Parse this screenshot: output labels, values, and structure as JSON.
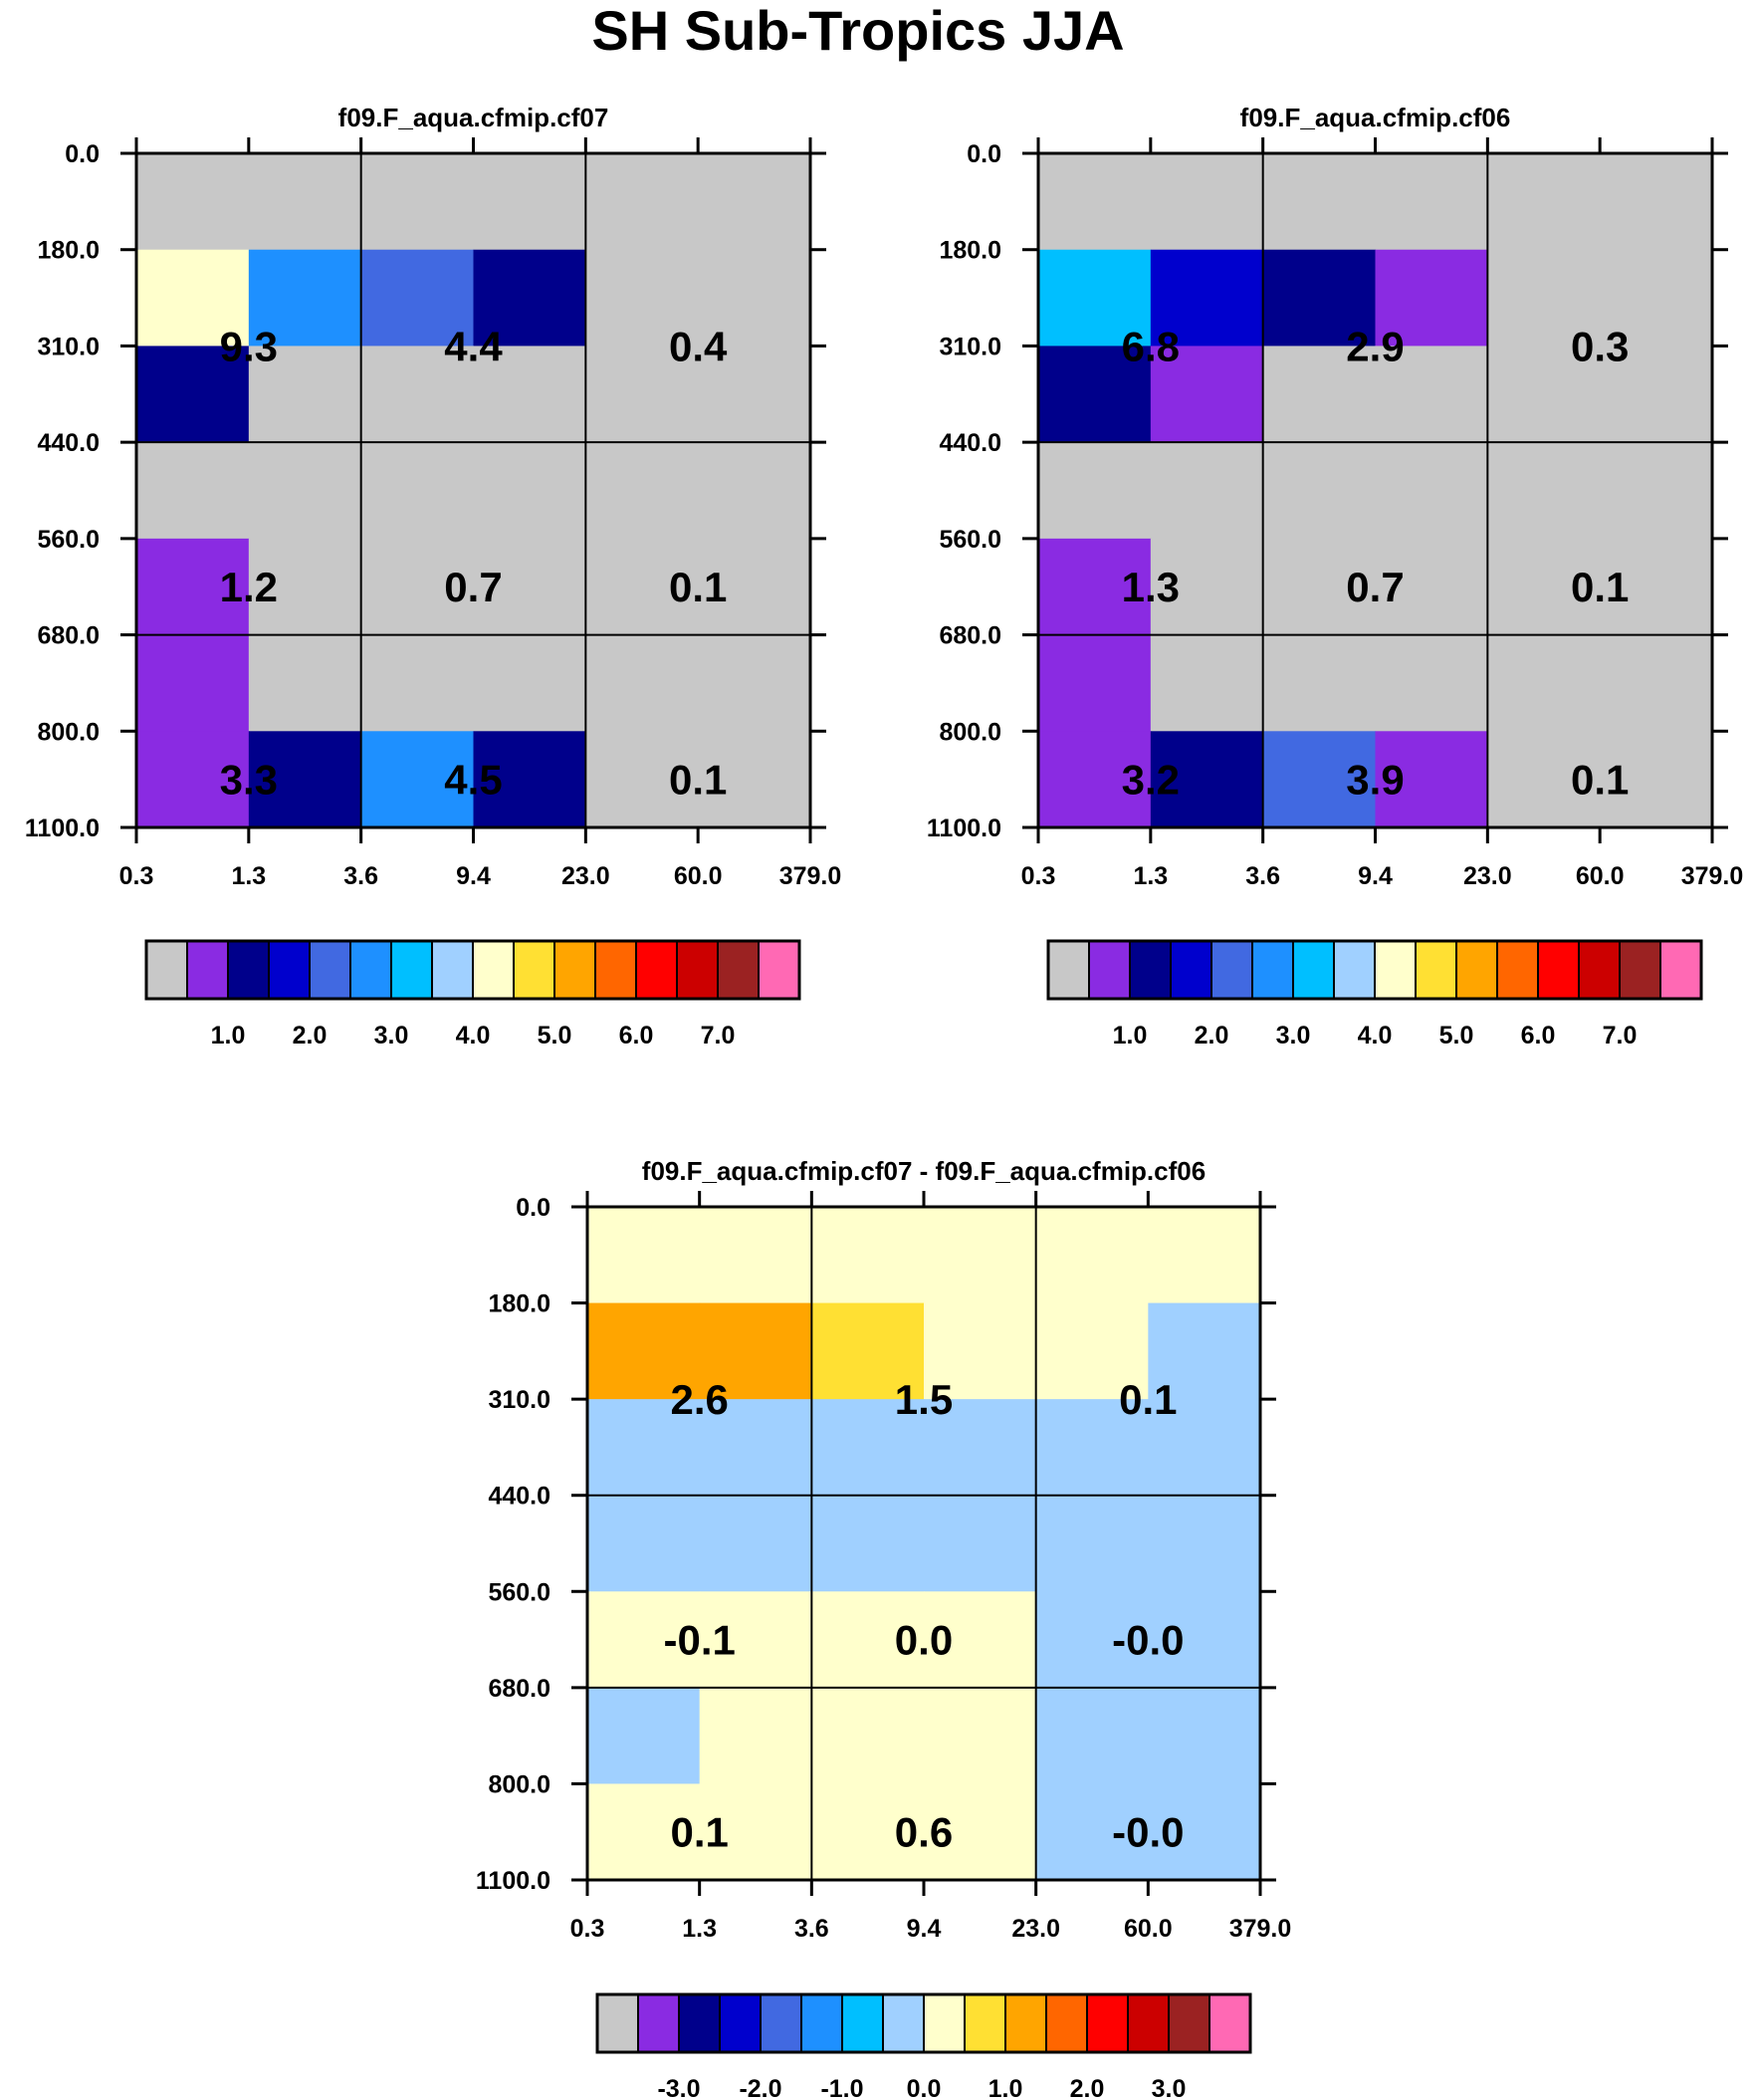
{
  "title": "SH Sub-Tropics JJA",
  "colors": {
    "palette": [
      "#c8c8c8",
      "#8a2be2",
      "#00008b",
      "#0000cd",
      "#4169e1",
      "#1e90ff",
      "#00bfff",
      "#a0d0ff",
      "#ffffcc",
      "#ffe033",
      "#ffa500",
      "#ff6600",
      "#ff0000",
      "#cc0000",
      "#9b2222",
      "#ff69b4"
    ],
    "missing": "#bebebe"
  },
  "chart_data": [
    {
      "type": "heatmap",
      "title": "f09.F_aqua.cfmip.cf07",
      "x_ticks": [
        "0.3",
        "1.3",
        "3.6",
        "9.4",
        "23.0",
        "60.0",
        "379.0"
      ],
      "y_ticks": [
        "0.0",
        "180.0",
        "310.0",
        "440.0",
        "560.0",
        "680.0",
        "800.0",
        "1100.0"
      ],
      "colorbar_labels": [
        "1.0",
        "2.0",
        "3.0",
        "4.0",
        "5.0",
        "6.0",
        "7.0"
      ],
      "colorbar_label_bins": [
        2,
        4,
        6,
        8,
        10,
        12,
        14
      ],
      "cell_colors": [
        [
          0,
          0,
          0,
          0,
          0,
          0
        ],
        [
          8,
          5,
          4,
          2,
          0,
          0
        ],
        [
          2,
          0,
          0,
          0,
          0,
          0
        ],
        [
          0,
          0,
          0,
          0,
          0,
          0
        ],
        [
          1,
          0,
          0,
          0,
          0,
          0
        ],
        [
          1,
          0,
          0,
          0,
          0,
          0
        ],
        [
          1,
          2,
          5,
          2,
          0,
          0
        ]
      ],
      "cell_labels": [
        {
          "text": "9.3",
          "col": 1,
          "row": 1.5
        },
        {
          "text": "4.4",
          "col": 3,
          "row": 1.5
        },
        {
          "text": "0.4",
          "col": 5,
          "row": 1.5
        },
        {
          "text": "1.2",
          "col": 1,
          "row": 4
        },
        {
          "text": "0.7",
          "col": 3,
          "row": 4
        },
        {
          "text": "0.1",
          "col": 5,
          "row": 4
        },
        {
          "text": "3.3",
          "col": 1,
          "row": 6
        },
        {
          "text": "4.5",
          "col": 3,
          "row": 6
        },
        {
          "text": "0.1",
          "col": 5,
          "row": 6
        }
      ]
    },
    {
      "type": "heatmap",
      "title": "f09.F_aqua.cfmip.cf06",
      "x_ticks": [
        "0.3",
        "1.3",
        "3.6",
        "9.4",
        "23.0",
        "60.0",
        "379.0"
      ],
      "y_ticks": [
        "0.0",
        "180.0",
        "310.0",
        "440.0",
        "560.0",
        "680.0",
        "800.0",
        "1100.0"
      ],
      "colorbar_labels": [
        "1.0",
        "2.0",
        "3.0",
        "4.0",
        "5.0",
        "6.0",
        "7.0"
      ],
      "colorbar_label_bins": [
        2,
        4,
        6,
        8,
        10,
        12,
        14
      ],
      "cell_colors": [
        [
          0,
          0,
          0,
          0,
          0,
          0
        ],
        [
          6,
          3,
          2,
          1,
          0,
          0
        ],
        [
          2,
          1,
          0,
          0,
          0,
          0
        ],
        [
          0,
          0,
          0,
          0,
          0,
          0
        ],
        [
          1,
          0,
          0,
          0,
          0,
          0
        ],
        [
          1,
          0,
          0,
          0,
          0,
          0
        ],
        [
          1,
          2,
          4,
          1,
          0,
          0
        ]
      ],
      "cell_labels": [
        {
          "text": "6.8",
          "col": 1,
          "row": 1.5
        },
        {
          "text": "2.9",
          "col": 3,
          "row": 1.5
        },
        {
          "text": "0.3",
          "col": 5,
          "row": 1.5
        },
        {
          "text": "1.3",
          "col": 1,
          "row": 4
        },
        {
          "text": "0.7",
          "col": 3,
          "row": 4
        },
        {
          "text": "0.1",
          "col": 5,
          "row": 4
        },
        {
          "text": "3.2",
          "col": 1,
          "row": 6
        },
        {
          "text": "3.9",
          "col": 3,
          "row": 6
        },
        {
          "text": "0.1",
          "col": 5,
          "row": 6
        }
      ]
    },
    {
      "type": "heatmap",
      "title": "f09.F_aqua.cfmip.cf07 - f09.F_aqua.cfmip.cf06",
      "x_ticks": [
        "0.3",
        "1.3",
        "3.6",
        "9.4",
        "23.0",
        "60.0",
        "379.0"
      ],
      "y_ticks": [
        "0.0",
        "180.0",
        "310.0",
        "440.0",
        "560.0",
        "680.0",
        "800.0",
        "1100.0"
      ],
      "colorbar_labels": [
        "-3.0",
        "-2.0",
        "-1.0",
        "0.0",
        "1.0",
        "2.0",
        "3.0"
      ],
      "colorbar_label_bins": [
        2,
        4,
        6,
        8,
        10,
        12,
        14
      ],
      "cell_colors": [
        [
          8,
          8,
          8,
          8,
          8,
          8
        ],
        [
          10,
          10,
          9,
          8,
          8,
          7
        ],
        [
          7,
          7,
          7,
          7,
          7,
          7
        ],
        [
          7,
          7,
          7,
          7,
          7,
          7
        ],
        [
          8,
          8,
          8,
          8,
          7,
          7
        ],
        [
          7,
          8,
          8,
          8,
          7,
          7
        ],
        [
          8,
          8,
          8,
          8,
          7,
          7
        ]
      ],
      "cell_labels": [
        {
          "text": "2.6",
          "col": 1,
          "row": 1.5
        },
        {
          "text": "1.5",
          "col": 3,
          "row": 1.5
        },
        {
          "text": "0.1",
          "col": 5,
          "row": 1.5
        },
        {
          "text": "-0.1",
          "col": 1,
          "row": 4
        },
        {
          "text": "0.0",
          "col": 3,
          "row": 4
        },
        {
          "text": "-0.0",
          "col": 5,
          "row": 4
        },
        {
          "text": "0.1",
          "col": 1,
          "row": 6
        },
        {
          "text": "0.6",
          "col": 3,
          "row": 6
        },
        {
          "text": "-0.0",
          "col": 5,
          "row": 6
        }
      ]
    }
  ]
}
